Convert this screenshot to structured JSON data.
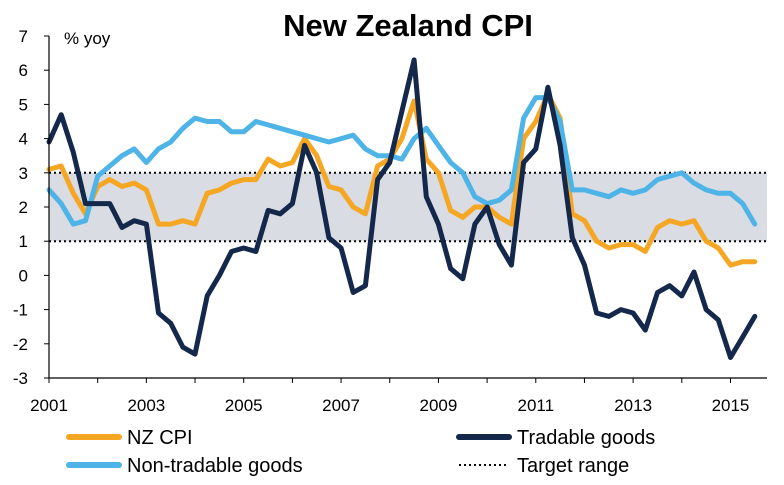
{
  "chart_data": {
    "type": "line",
    "title": "New Zealand CPI",
    "ylabel": "% yoy",
    "xlabel": "",
    "ylim": [
      -3,
      7
    ],
    "xlim": [
      2001,
      2015.75
    ],
    "yticks": [
      "7",
      "6",
      "5",
      "4",
      "3",
      "2",
      "1",
      "0",
      "-1",
      "-2",
      "-3"
    ],
    "xticks": [
      "2001",
      "2003",
      "2005",
      "2007",
      "2009",
      "2011",
      "2013",
      "2015"
    ],
    "target_range": [
      1,
      3
    ],
    "grid": false,
    "legend_position": "bottom",
    "colors": {
      "nz_cpi": "#F5A623",
      "tradable": "#14284B",
      "nontradable": "#4EB3E6",
      "target_band": "#D9DCE3",
      "target_line": "#000000"
    },
    "x": [
      2001.0,
      2001.25,
      2001.5,
      2001.75,
      2002.0,
      2002.25,
      2002.5,
      2002.75,
      2003.0,
      2003.25,
      2003.5,
      2003.75,
      2004.0,
      2004.25,
      2004.5,
      2004.75,
      2005.0,
      2005.25,
      2005.5,
      2005.75,
      2006.0,
      2006.25,
      2006.5,
      2006.75,
      2007.0,
      2007.25,
      2007.5,
      2007.75,
      2008.0,
      2008.25,
      2008.5,
      2008.75,
      2009.0,
      2009.25,
      2009.5,
      2009.75,
      2010.0,
      2010.25,
      2010.5,
      2010.75,
      2011.0,
      2011.25,
      2011.5,
      2011.75,
      2012.0,
      2012.25,
      2012.5,
      2012.75,
      2013.0,
      2013.25,
      2013.5,
      2013.75,
      2014.0,
      2014.25,
      2014.5,
      2014.75,
      2015.0,
      2015.25,
      2015.5
    ],
    "series": [
      {
        "key": "nz_cpi",
        "name": "NZ CPI",
        "values": [
          3.1,
          3.2,
          2.4,
          1.8,
          2.6,
          2.8,
          2.6,
          2.7,
          2.5,
          1.5,
          1.5,
          1.6,
          1.5,
          2.4,
          2.5,
          2.7,
          2.8,
          2.8,
          3.4,
          3.2,
          3.3,
          4.0,
          3.5,
          2.6,
          2.5,
          2.0,
          1.8,
          3.2,
          3.4,
          4.0,
          5.1,
          3.4,
          3.0,
          1.9,
          1.7,
          2.0,
          2.0,
          1.7,
          1.5,
          4.0,
          4.5,
          5.3,
          4.6,
          1.8,
          1.6,
          1.0,
          0.8,
          0.9,
          0.9,
          0.7,
          1.4,
          1.6,
          1.5,
          1.6,
          1.0,
          0.8,
          0.3,
          0.4,
          0.4
        ]
      },
      {
        "key": "tradable",
        "name": "Tradable goods",
        "values": [
          3.9,
          4.7,
          3.6,
          2.1,
          2.1,
          2.1,
          1.4,
          1.6,
          1.5,
          -1.1,
          -1.4,
          -2.1,
          -2.3,
          -0.6,
          0.0,
          0.7,
          0.8,
          0.7,
          1.9,
          1.8,
          2.1,
          3.8,
          3.0,
          1.1,
          0.8,
          -0.5,
          -0.3,
          2.8,
          3.3,
          4.8,
          6.3,
          2.3,
          1.5,
          0.2,
          -0.1,
          1.5,
          2.0,
          0.9,
          0.3,
          3.3,
          3.7,
          5.5,
          3.8,
          1.1,
          0.3,
          -1.1,
          -1.2,
          -1.0,
          -1.1,
          -1.6,
          -0.5,
          -0.3,
          -0.6,
          0.1,
          -1.0,
          -1.3,
          -2.4,
          -1.8,
          -1.2
        ]
      },
      {
        "key": "nontradable",
        "name": "Non-tradable goods",
        "values": [
          2.5,
          2.1,
          1.5,
          1.6,
          2.9,
          3.2,
          3.5,
          3.7,
          3.3,
          3.7,
          3.9,
          4.3,
          4.6,
          4.5,
          4.5,
          4.2,
          4.2,
          4.5,
          4.4,
          4.3,
          4.2,
          4.1,
          4.0,
          3.9,
          4.0,
          4.1,
          3.7,
          3.5,
          3.5,
          3.4,
          4.0,
          4.3,
          3.8,
          3.3,
          3.0,
          2.3,
          2.1,
          2.2,
          2.5,
          4.6,
          5.2,
          5.2,
          4.5,
          2.5,
          2.5,
          2.4,
          2.3,
          2.5,
          2.4,
          2.5,
          2.8,
          2.9,
          3.0,
          2.7,
          2.5,
          2.4,
          2.4,
          2.1,
          1.5
        ]
      }
    ],
    "legend": [
      {
        "key": "nz_cpi",
        "label": "NZ CPI",
        "style": "solid"
      },
      {
        "key": "tradable",
        "label": "Tradable goods",
        "style": "solid"
      },
      {
        "key": "nontradable",
        "label": "Non-tradable goods",
        "style": "solid"
      },
      {
        "key": "target",
        "label": "Target range",
        "style": "dotted"
      }
    ]
  }
}
